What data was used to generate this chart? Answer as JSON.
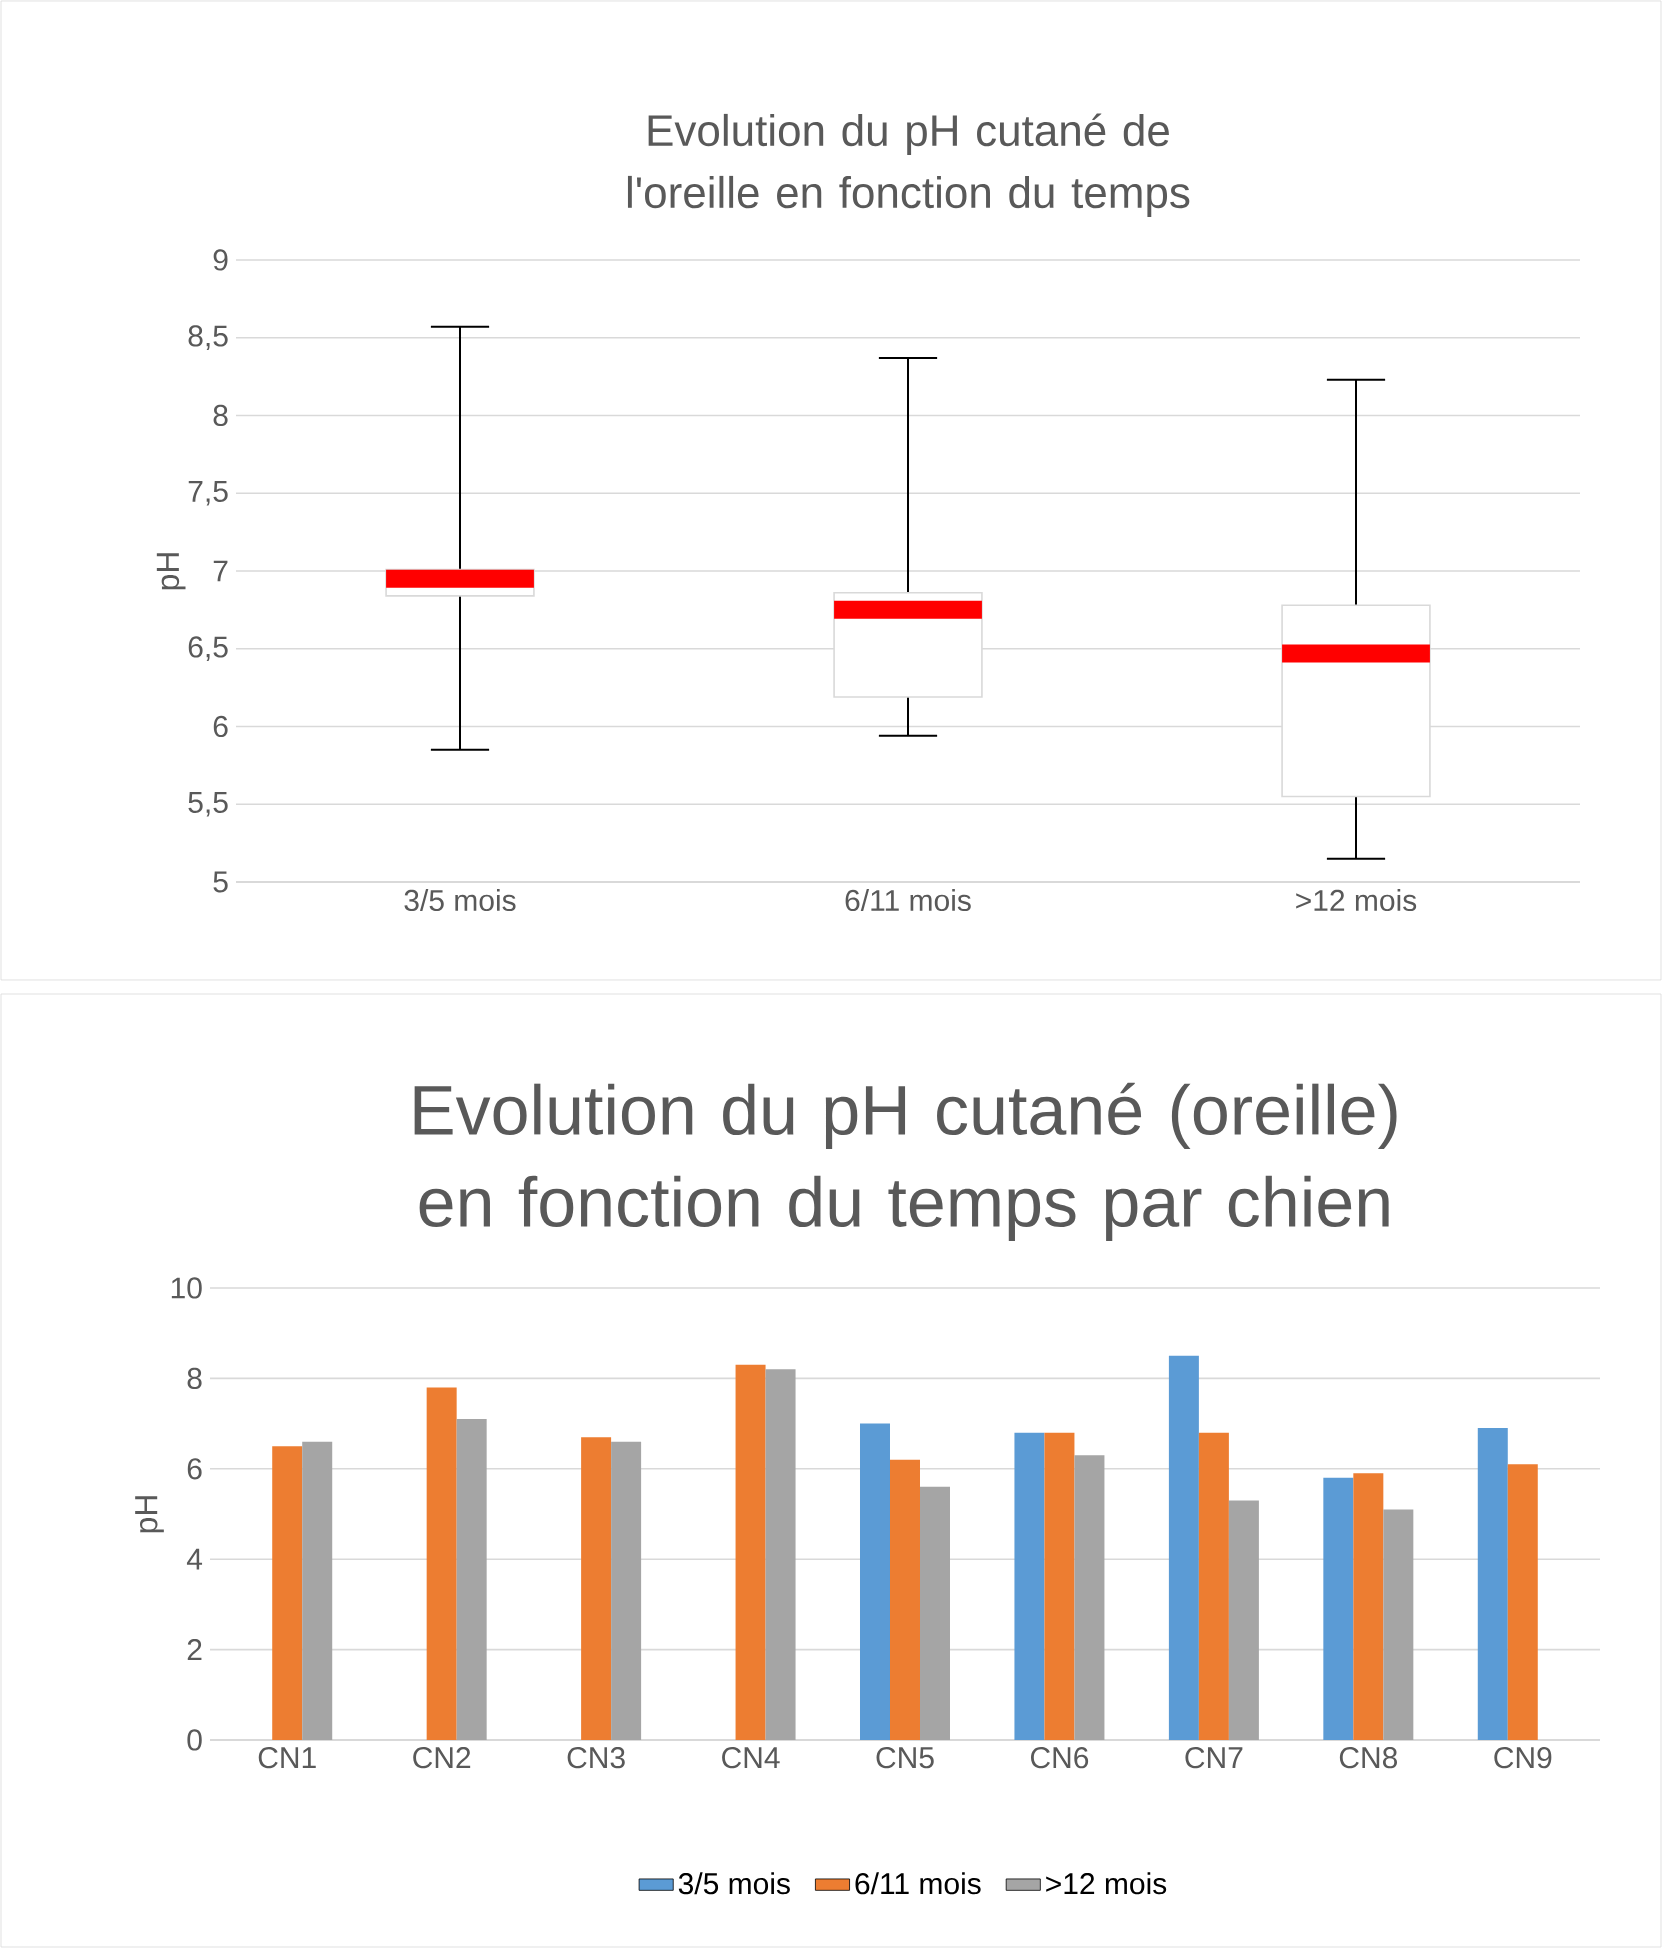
{
  "chart_data": [
    {
      "type": "box",
      "title": "Evolution du pH cutané de l'oreille en fonction du temps",
      "ylabel": "pH",
      "categories": [
        "3/5 mois",
        "6/11 mois",
        ">12 mois"
      ],
      "boxes": [
        {
          "low": 5.85,
          "q1": 6.84,
          "median": 6.95,
          "q3": 7.01,
          "high": 8.57
        },
        {
          "low": 5.94,
          "q1": 6.19,
          "median": 6.75,
          "q3": 6.86,
          "high": 8.37
        },
        {
          "low": 5.15,
          "q1": 5.55,
          "median": 6.47,
          "q3": 6.78,
          "high": 8.23
        }
      ],
      "ylim": [
        5,
        9
      ],
      "yticks": [
        5,
        {
          "value": 5.5,
          "label": "5,5"
        },
        6,
        {
          "value": 6.5,
          "label": "6,5"
        },
        7,
        {
          "value": 7.5,
          "label": "7,5"
        },
        8,
        {
          "value": 8.5,
          "label": "8,5"
        },
        9
      ],
      "grid": "y"
    },
    {
      "type": "bar",
      "title": "Evolution du pH cutané (oreille) en fonction du temps par chien",
      "ylabel": "pH",
      "categories": [
        "CN1",
        "CN2",
        "CN3",
        "CN4",
        "CN5",
        "CN6",
        "CN7",
        "CN8",
        "CN9"
      ],
      "series": [
        {
          "name": "3/5 mois",
          "color": "#5b9bd5",
          "values": [
            null,
            null,
            null,
            null,
            7.0,
            6.8,
            8.5,
            5.8,
            6.9
          ]
        },
        {
          "name": "6/11 mois",
          "color": "#ed7d31",
          "values": [
            6.5,
            7.8,
            6.7,
            8.3,
            6.2,
            6.8,
            6.8,
            5.9,
            6.1
          ]
        },
        {
          "name": ">12 mois",
          "color": "#a5a5a5",
          "values": [
            6.6,
            7.1,
            6.6,
            8.2,
            5.6,
            6.3,
            5.3,
            5.1,
            null
          ]
        }
      ],
      "ylim": [
        0,
        10
      ],
      "yticks": [
        0,
        2,
        4,
        6,
        8,
        10
      ],
      "grid": "y",
      "legend": "bottom"
    }
  ]
}
